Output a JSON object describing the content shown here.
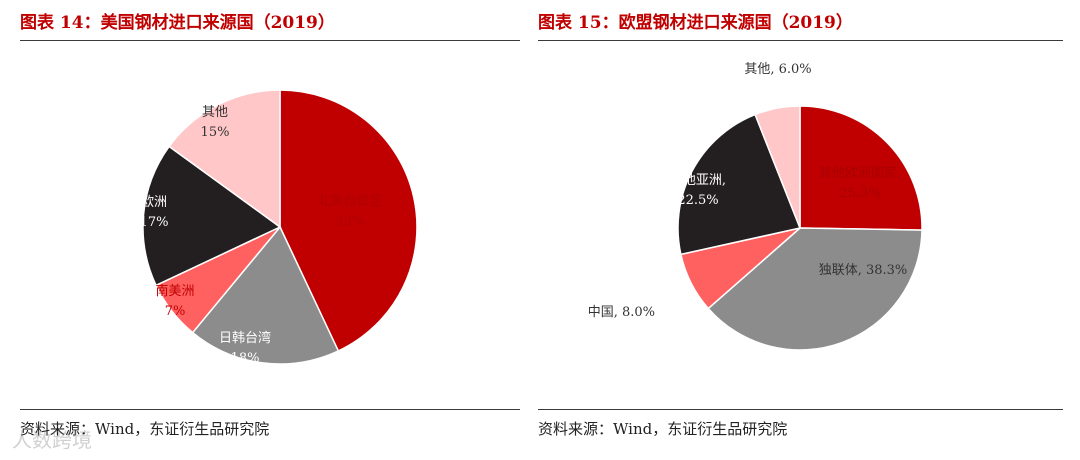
{
  "chart_data": [
    {
      "type": "pie",
      "title": "图表 14：美国钢材进口来源国（2019）",
      "source": "资料来源：Wind，东证衍生品研究院",
      "slices": [
        {
          "name": "北美自贸区",
          "value": 43,
          "label": "43%",
          "color": "#c00000"
        },
        {
          "name": "日韩台湾",
          "value": 18,
          "label": "18%",
          "color": "#8c8c8c"
        },
        {
          "name": "南美洲",
          "value": 7,
          "label": "7%",
          "color": "#ff6161"
        },
        {
          "name": "欧洲",
          "value": 17,
          "label": "17%",
          "color": "#231f20"
        },
        {
          "name": "其他",
          "value": 15,
          "label": "15%",
          "color": "#ffc7c8"
        }
      ]
    },
    {
      "type": "pie",
      "title": "图表 15：欧盟钢材进口来源国（2019）",
      "source": "资料来源：Wind，东证衍生品研究院",
      "slices": [
        {
          "name": "其他欧洲国家",
          "value": 25.3,
          "label": "25.3%",
          "color": "#c00000"
        },
        {
          "name": "独联体",
          "value": 38.3,
          "label": "38.3%",
          "color": "#8c8c8c"
        },
        {
          "name": "中国",
          "value": 8.0,
          "label": "8.0%",
          "color": "#ff6161"
        },
        {
          "name": "其他亚洲",
          "value": 22.5,
          "label": "22.5%",
          "color": "#231f20"
        },
        {
          "name": "其他",
          "value": 6.0,
          "label": "6.0%",
          "color": "#ffc7c8"
        }
      ]
    }
  ],
  "watermark": "人数跨境"
}
